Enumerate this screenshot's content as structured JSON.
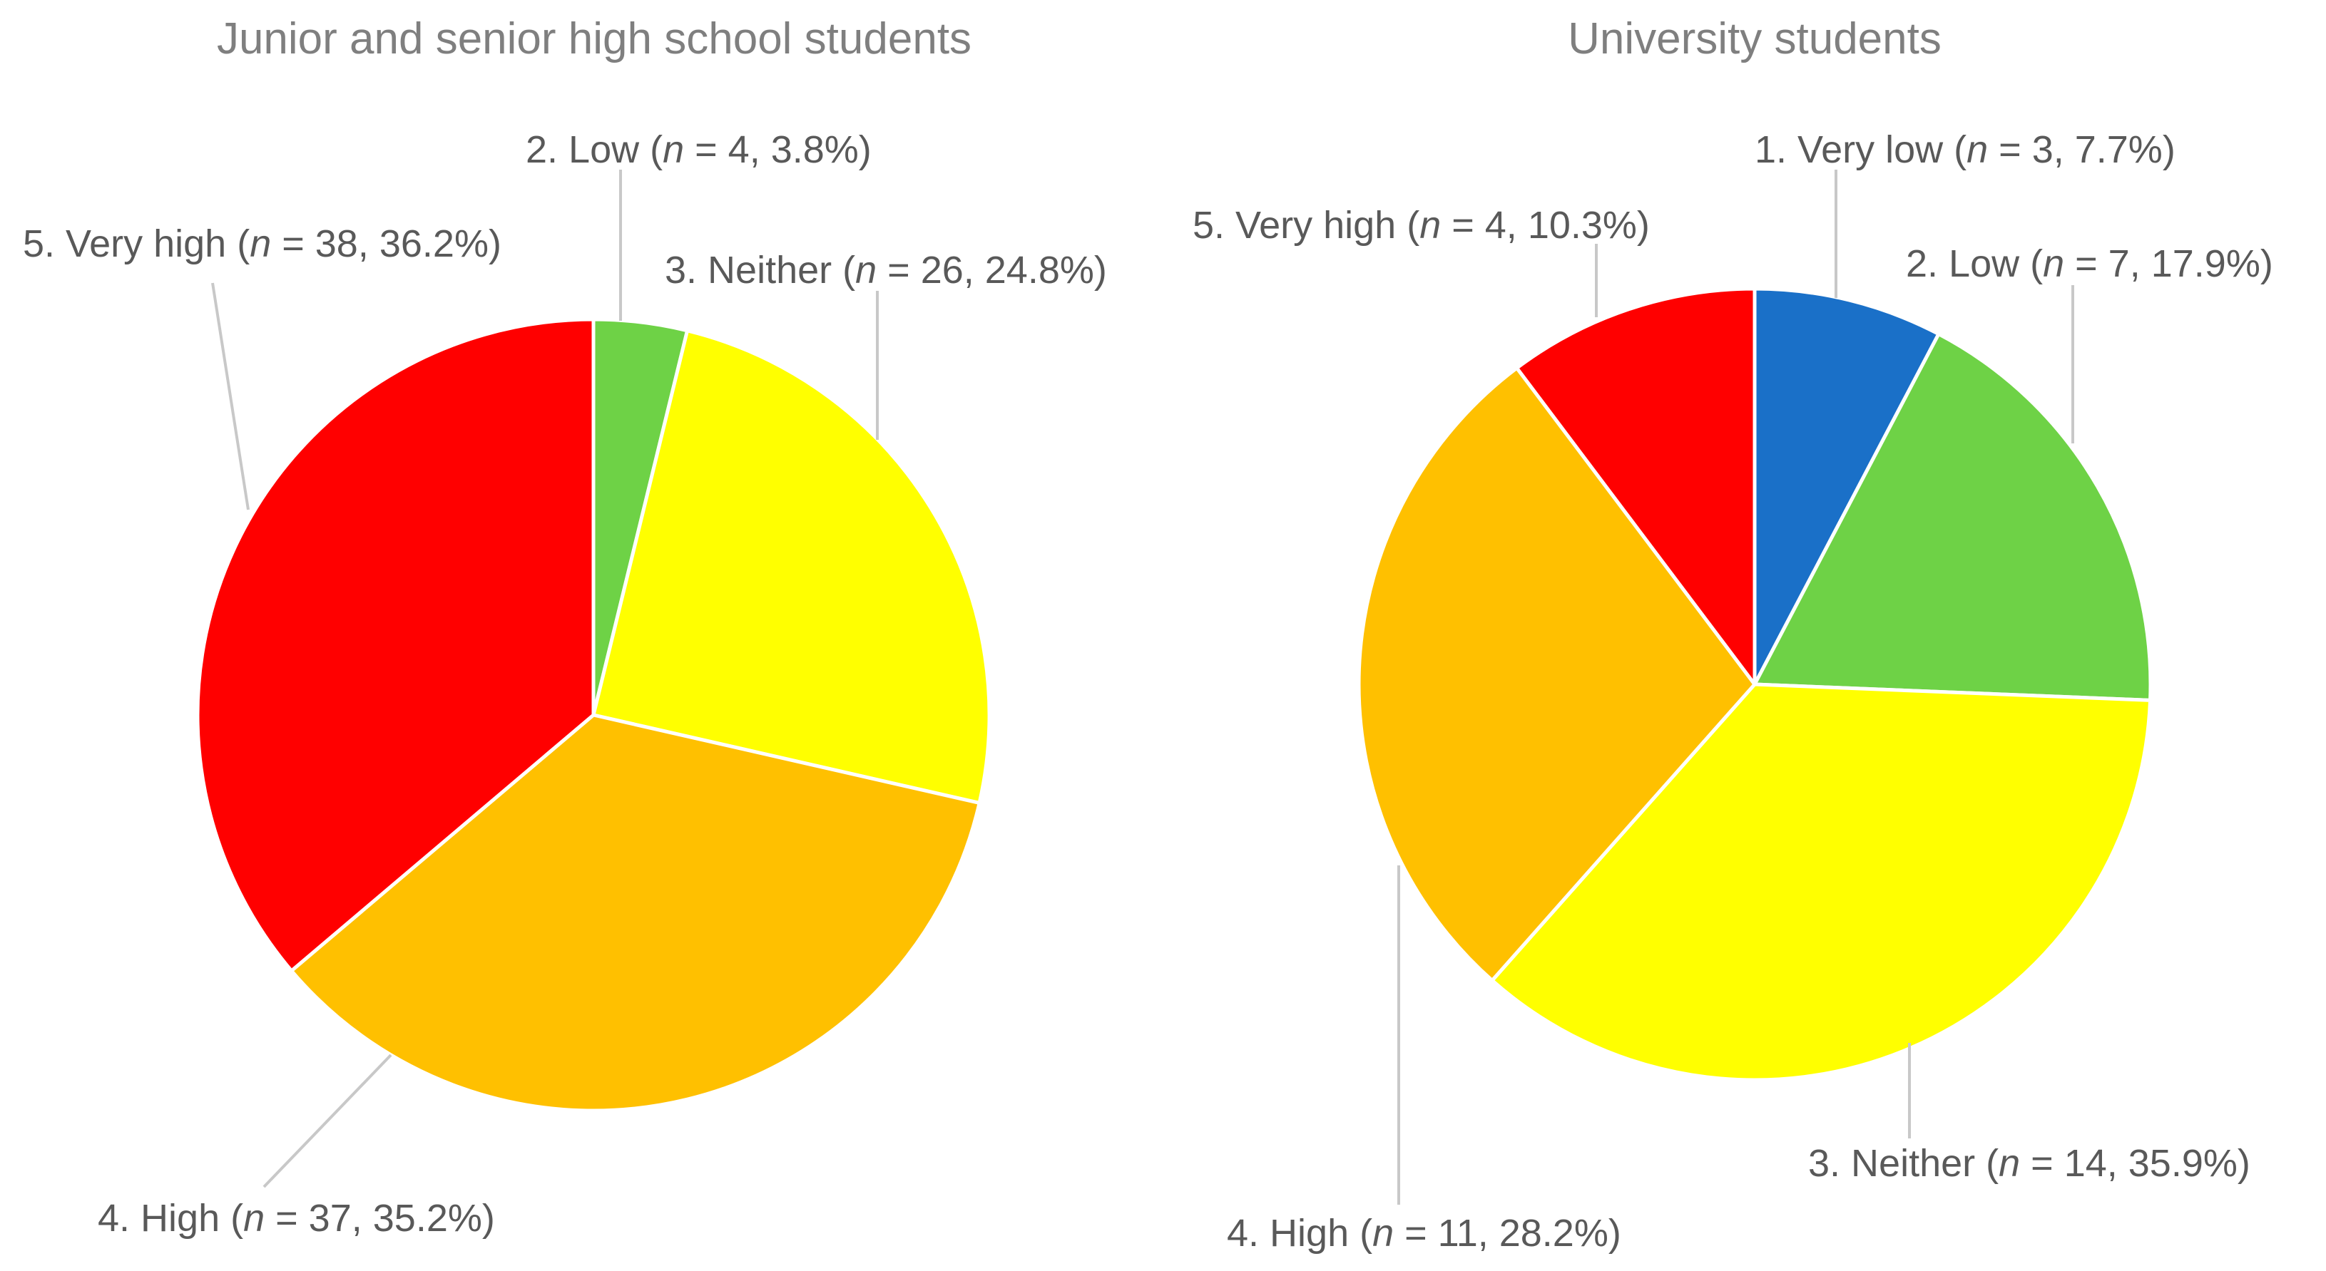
{
  "chart_data": [
    {
      "type": "pie",
      "title": "Junior and senior high school students",
      "slices": [
        {
          "category": "2. Low",
          "n": 4,
          "percent": "3.8%",
          "color": "#6ED246"
        },
        {
          "category": "3. Neither",
          "n": 26,
          "percent": "24.8%",
          "color": "#FFFF00"
        },
        {
          "category": "4. High",
          "n": 37,
          "percent": "35.2%",
          "color": "#FFC000"
        },
        {
          "category": "5. Very high",
          "n": 38,
          "percent": "36.2%",
          "color": "#FF0000"
        }
      ]
    },
    {
      "type": "pie",
      "title": "University students",
      "slices": [
        {
          "category": "1. Very low",
          "n": 3,
          "percent": "7.7%",
          "color": "#1A70C8"
        },
        {
          "category": "2. Low",
          "n": 7,
          "percent": "17.9%",
          "color": "#6ED246"
        },
        {
          "category": "3. Neither",
          "n": 14,
          "percent": "35.9%",
          "color": "#FFFF00"
        },
        {
          "category": "4. High",
          "n": 11,
          "percent": "28.2%",
          "color": "#FFC000"
        },
        {
          "category": "5. Very high",
          "n": 4,
          "percent": "10.3%",
          "color": "#FF0000"
        }
      ]
    }
  ]
}
